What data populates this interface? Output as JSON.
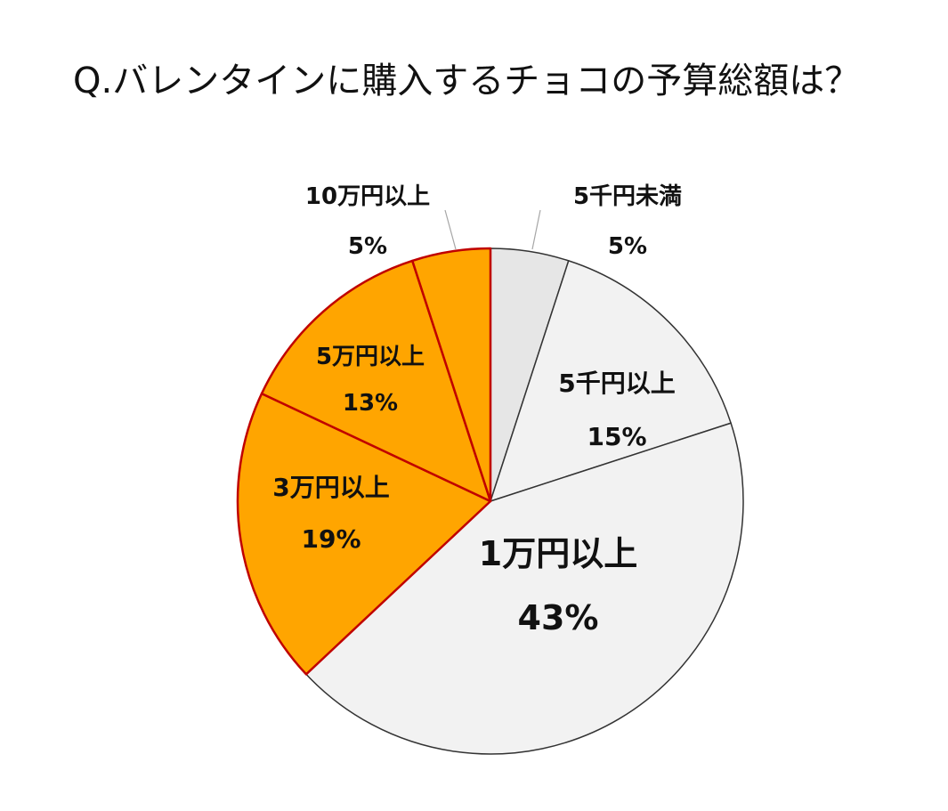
{
  "chart_data": {
    "type": "pie",
    "title": "Q.バレンタインに購入するチョコの予算総額は？",
    "start": "12 o'clock, clockwise",
    "slices": [
      {
        "label": "5千円未満",
        "value": 5,
        "pct": "5%",
        "color": "#e6e6e6",
        "stroke": "#333333"
      },
      {
        "label": "5千円以上",
        "value": 15,
        "pct": "15%",
        "color": "#f2f2f2",
        "stroke": "#333333"
      },
      {
        "label": "1万円以上",
        "value": 43,
        "pct": "43%",
        "color": "#f2f2f2",
        "stroke": "#333333"
      },
      {
        "label": "3万円以上",
        "value": 19,
        "pct": "19%",
        "color": "#ffa500",
        "stroke": "#c00000"
      },
      {
        "label": "5万円以上",
        "value": 13,
        "pct": "13%",
        "color": "#ffa500",
        "stroke": "#c00000"
      },
      {
        "label": "10万円以上",
        "value": 5,
        "pct": "5%",
        "color": "#ffa500",
        "stroke": "#c00000"
      }
    ]
  }
}
